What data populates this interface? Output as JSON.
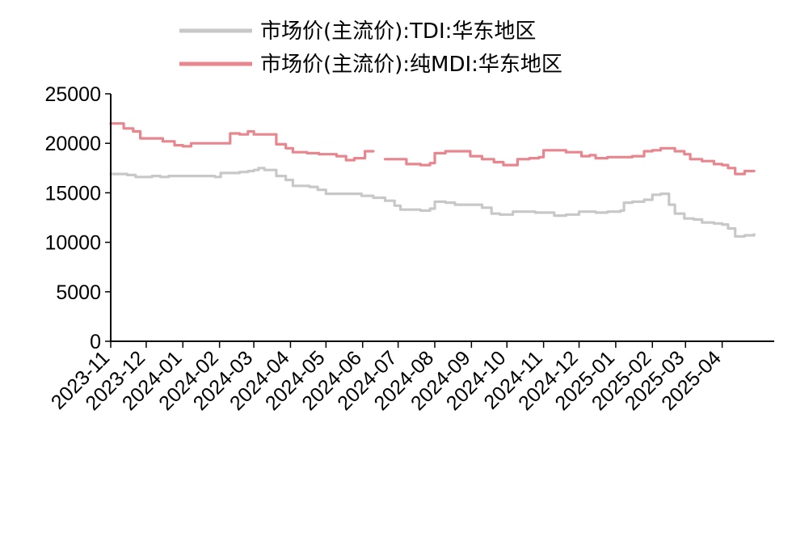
{
  "chart_data": {
    "type": "line",
    "title": "",
    "xlabel": "",
    "ylabel": "",
    "ylim": [
      0,
      25000
    ],
    "yticks": [
      0,
      5000,
      10000,
      15000,
      20000,
      25000
    ],
    "xlim": [
      "2023-11-01",
      "2025-05-15"
    ],
    "xticks": [
      "2023-11",
      "2023-12",
      "2024-01",
      "2024-02",
      "2024-03",
      "2024-04",
      "2024-05",
      "2024-06",
      "2024-07",
      "2024-08",
      "2024-09",
      "2024-10",
      "2024-11",
      "2024-12",
      "2025-01",
      "2025-02",
      "2025-03",
      "2025-04"
    ],
    "grid": false,
    "legend_position": "top",
    "series": [
      {
        "name": "市场价(主流价):TDI:华东地区",
        "color": "#c8c8c8",
        "points": [
          [
            "2023-11-01",
            16900
          ],
          [
            "2023-11-08",
            16900
          ],
          [
            "2023-11-15",
            16800
          ],
          [
            "2023-11-22",
            16600
          ],
          [
            "2023-11-29",
            16600
          ],
          [
            "2023-12-06",
            16700
          ],
          [
            "2023-12-13",
            16600
          ],
          [
            "2023-12-20",
            16700
          ],
          [
            "2023-12-27",
            16700
          ],
          [
            "2024-01-05",
            16700
          ],
          [
            "2024-01-12",
            16700
          ],
          [
            "2024-01-20",
            16700
          ],
          [
            "2024-01-28",
            16600
          ],
          [
            "2024-02-02",
            17000
          ],
          [
            "2024-02-10",
            17000
          ],
          [
            "2024-02-18",
            17100
          ],
          [
            "2024-02-25",
            17200
          ],
          [
            "2024-03-01",
            17300
          ],
          [
            "2024-03-05",
            17500
          ],
          [
            "2024-03-10",
            17300
          ],
          [
            "2024-03-20",
            16700
          ],
          [
            "2024-03-28",
            16300
          ],
          [
            "2024-04-03",
            15700
          ],
          [
            "2024-04-10",
            15700
          ],
          [
            "2024-04-17",
            15600
          ],
          [
            "2024-04-24",
            15300
          ],
          [
            "2024-05-01",
            14900
          ],
          [
            "2024-05-10",
            14900
          ],
          [
            "2024-05-20",
            14900
          ],
          [
            "2024-05-31",
            14700
          ],
          [
            "2024-06-10",
            14500
          ],
          [
            "2024-06-20",
            14200
          ],
          [
            "2024-06-28",
            13700
          ],
          [
            "2024-07-03",
            13300
          ],
          [
            "2024-07-10",
            13300
          ],
          [
            "2024-07-20",
            13200
          ],
          [
            "2024-07-28",
            13400
          ],
          [
            "2024-08-01",
            14100
          ],
          [
            "2024-08-10",
            14000
          ],
          [
            "2024-08-18",
            13800
          ],
          [
            "2024-08-25",
            13800
          ],
          [
            "2024-09-01",
            13800
          ],
          [
            "2024-09-10",
            13500
          ],
          [
            "2024-09-18",
            12900
          ],
          [
            "2024-09-25",
            12800
          ],
          [
            "2024-10-01",
            12800
          ],
          [
            "2024-10-06",
            13100
          ],
          [
            "2024-10-15",
            13100
          ],
          [
            "2024-10-25",
            13000
          ],
          [
            "2024-11-01",
            13000
          ],
          [
            "2024-11-10",
            12700
          ],
          [
            "2024-11-20",
            12800
          ],
          [
            "2024-12-01",
            13100
          ],
          [
            "2024-12-15",
            13000
          ],
          [
            "2024-12-25",
            13100
          ],
          [
            "2025-01-05",
            13200
          ],
          [
            "2025-01-08",
            14000
          ],
          [
            "2025-01-15",
            14100
          ],
          [
            "2025-01-25",
            14300
          ],
          [
            "2025-02-01",
            14800
          ],
          [
            "2025-02-08",
            14900
          ],
          [
            "2025-02-15",
            13800
          ],
          [
            "2025-02-20",
            12900
          ],
          [
            "2025-02-28",
            12400
          ],
          [
            "2025-03-08",
            12300
          ],
          [
            "2025-03-15",
            12000
          ],
          [
            "2025-03-25",
            11900
          ],
          [
            "2025-04-01",
            11800
          ],
          [
            "2025-04-06",
            11400
          ],
          [
            "2025-04-12",
            10600
          ],
          [
            "2025-04-20",
            10700
          ],
          [
            "2025-04-28",
            10800
          ]
        ]
      },
      {
        "name": "市场价(主流价):纯MDI:华东地区",
        "color": "#e8868f",
        "points": [
          [
            "2023-11-01",
            22000
          ],
          [
            "2023-11-08",
            22000
          ],
          [
            "2023-11-12",
            21500
          ],
          [
            "2023-11-20",
            21200
          ],
          [
            "2023-11-26",
            20500
          ],
          [
            "2023-12-05",
            20500
          ],
          [
            "2023-12-15",
            20200
          ],
          [
            "2023-12-25",
            19800
          ],
          [
            "2024-01-01",
            19700
          ],
          [
            "2024-01-08",
            20000
          ],
          [
            "2024-01-20",
            20000
          ],
          [
            "2024-02-01",
            20000
          ],
          [
            "2024-02-08",
            20000
          ],
          [
            "2024-02-10",
            21000
          ],
          [
            "2024-02-18",
            20900
          ],
          [
            "2024-02-25",
            21200
          ],
          [
            "2024-03-01",
            20900
          ],
          [
            "2024-03-10",
            20900
          ],
          [
            "2024-03-20",
            19900
          ],
          [
            "2024-03-28",
            19500
          ],
          [
            "2024-04-03",
            19100
          ],
          [
            "2024-04-15",
            19000
          ],
          [
            "2024-04-25",
            18900
          ],
          [
            "2024-05-01",
            18900
          ],
          [
            "2024-05-10",
            18700
          ],
          [
            "2024-05-18",
            18300
          ],
          [
            "2024-05-25",
            18500
          ],
          [
            "2024-06-03",
            19200
          ],
          [
            "2024-06-10",
            19200
          ],
          [
            null,
            null
          ],
          [
            "2024-06-20",
            18400
          ],
          [
            "2024-06-30",
            18400
          ],
          [
            "2024-07-08",
            17900
          ],
          [
            "2024-07-20",
            17800
          ],
          [
            "2024-07-28",
            18000
          ],
          [
            "2024-08-01",
            19000
          ],
          [
            "2024-08-10",
            19200
          ],
          [
            "2024-08-20",
            19200
          ],
          [
            "2024-08-31",
            18700
          ],
          [
            "2024-09-10",
            18400
          ],
          [
            "2024-09-20",
            18100
          ],
          [
            "2024-09-28",
            17800
          ],
          [
            "2024-10-05",
            17800
          ],
          [
            "2024-10-10",
            18400
          ],
          [
            "2024-10-20",
            18500
          ],
          [
            "2024-10-28",
            18600
          ],
          [
            "2024-11-01",
            19300
          ],
          [
            "2024-11-10",
            19300
          ],
          [
            "2024-11-20",
            19100
          ],
          [
            "2024-11-28",
            19100
          ],
          [
            "2024-12-03",
            18700
          ],
          [
            "2024-12-10",
            18800
          ],
          [
            "2024-12-15",
            18500
          ],
          [
            "2024-12-25",
            18600
          ],
          [
            "2025-01-05",
            18600
          ],
          [
            "2025-01-15",
            18700
          ],
          [
            "2025-01-25",
            19200
          ],
          [
            "2025-02-01",
            19300
          ],
          [
            "2025-02-08",
            19500
          ],
          [
            "2025-02-20",
            19200
          ],
          [
            "2025-02-28",
            18900
          ],
          [
            "2025-03-05",
            18400
          ],
          [
            "2025-03-15",
            18200
          ],
          [
            "2025-03-25",
            17900
          ],
          [
            "2025-04-01",
            17800
          ],
          [
            "2025-04-06",
            17500
          ],
          [
            "2025-04-12",
            16900
          ],
          [
            "2025-04-20",
            17200
          ],
          [
            "2025-04-28",
            17200
          ]
        ]
      }
    ]
  }
}
